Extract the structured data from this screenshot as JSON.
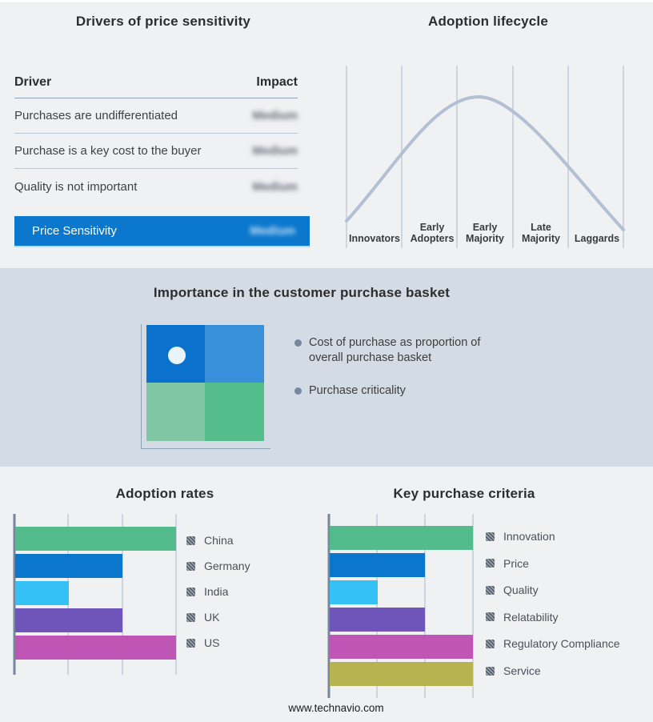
{
  "page": {
    "footer": "www.technavio.com",
    "background": "#f0f1f3",
    "band_background": "#d3dce5"
  },
  "drivers": {
    "title": "Drivers of price sensitivity",
    "columns": {
      "driver": "Driver",
      "impact": "Impact"
    },
    "rows": [
      {
        "driver": "Purchases are undifferentiated",
        "impact": "Medium"
      },
      {
        "driver": "Purchase is a key cost to the buyer",
        "impact": "Medium"
      },
      {
        "driver": "Quality is not important",
        "impact": "Medium"
      }
    ],
    "summary": {
      "label": "Price Sensitivity",
      "impact": "Medium"
    },
    "impact_values_blurred": true,
    "accent_color": "#0b78cd"
  },
  "basket": {
    "title": "Importance in the customer purchase basket",
    "bullets": [
      "Cost of purchase as proportion of overall purchase basket",
      "Purchase criticality"
    ],
    "quadrant_colors": {
      "top_left": "#0a72cc",
      "top_right": "#3790d9",
      "bottom_left": "#7ec6a4",
      "bottom_right": "#54bd8b"
    },
    "marker_dot_color": "#e9f3fa"
  },
  "chart_data": [
    {
      "type": "line",
      "title": "Adoption lifecycle",
      "x": [
        "Innovators",
        "Early Adopters",
        "Early Majority",
        "Late Majority",
        "Laggards"
      ],
      "y_relative": [
        0.2,
        0.6,
        1.0,
        0.65,
        0.12
      ],
      "shape": "bell curve peaking at Early Majority",
      "line_color": "#b3bfd2",
      "grid": "vertical stage separators",
      "legend_position": "none"
    },
    {
      "type": "bar",
      "orientation": "horizontal",
      "title": "Adoption rates",
      "categories": [
        "China",
        "Germany",
        "India",
        "UK",
        "US"
      ],
      "values": [
        3,
        2,
        1,
        2,
        3
      ],
      "xlim": [
        0,
        3
      ],
      "colors": [
        "#54bb8c",
        "#0a77cc",
        "#35c1f5",
        "#6f55b9",
        "#bf55b4"
      ],
      "grid": true,
      "legend_position": "right"
    },
    {
      "type": "bar",
      "orientation": "horizontal",
      "title": "Key purchase criteria",
      "categories": [
        "Innovation",
        "Price",
        "Quality",
        "Relatability",
        "Regulatory Compliance",
        "Service"
      ],
      "values": [
        3,
        2,
        1,
        2,
        3,
        3
      ],
      "xlim": [
        0,
        3
      ],
      "colors": [
        "#54bb8c",
        "#0a77cc",
        "#35c1f5",
        "#6f55b9",
        "#bf55b4",
        "#b7b350"
      ],
      "grid": true,
      "legend_position": "right"
    }
  ]
}
